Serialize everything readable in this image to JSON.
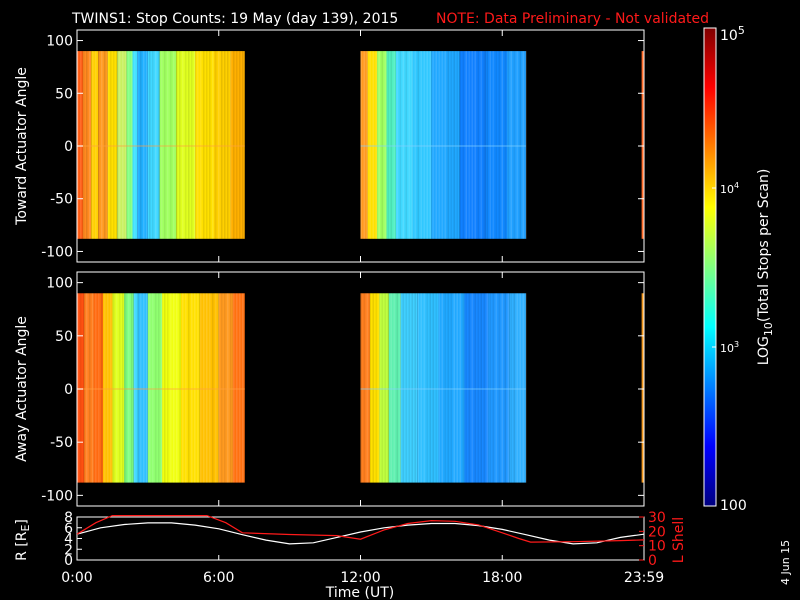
{
  "title": {
    "main": "TWINS1: Stop Counts: 19 May (day 139), 2015",
    "note": "NOTE: Data Preliminary - Not validated"
  },
  "stamp": "4 Jun 15",
  "colorbar": {
    "label": "LOG10(Total Stops per Scan)",
    "label_prefix": "LOG",
    "label_sub": "10",
    "label_suffix": "(Total Stops per Scan)",
    "range": [
      100,
      100000
    ],
    "scale": "log",
    "tick_labels": {
      "t1e5_base": "10",
      "t1e5_exp": "5",
      "t1e4_base": "10",
      "t1e4_exp": "4",
      "t1e3_base": "10",
      "t1e3_exp": "3",
      "t100": "100"
    },
    "colors": [
      "#00007f",
      "#0000ff",
      "#0080ff",
      "#00ffff",
      "#80ff80",
      "#ffff00",
      "#ff8000",
      "#ff0000",
      "#7f0000"
    ]
  },
  "chart_data": [
    {
      "type": "heatmap",
      "panel": "toward",
      "ylabel": "Toward Actuator Angle",
      "ylim": [
        -110,
        110
      ],
      "yticks": [
        100,
        50,
        0,
        -50,
        -100
      ],
      "ytick_labels": [
        "100",
        "50",
        "0",
        "-50",
        "-100"
      ],
      "data_angle_range": [
        -88,
        90
      ],
      "segments": [
        {
          "start_h": 0.0,
          "end_h": 7.1,
          "blocks": [
            [
              0.0,
              0.25,
              "#ff5a10"
            ],
            [
              0.25,
              0.6,
              "#ff8a20"
            ],
            [
              0.6,
              0.9,
              "#ffd000"
            ],
            [
              0.9,
              1.3,
              "#ff9a20"
            ],
            [
              1.3,
              1.7,
              "#ffe000"
            ],
            [
              1.7,
              2.1,
              "#c8f060"
            ],
            [
              2.1,
              2.35,
              "#80ff80"
            ],
            [
              2.35,
              2.55,
              "#40e0ff"
            ],
            [
              2.55,
              3.0,
              "#20b0ff"
            ],
            [
              3.0,
              3.5,
              "#40d8ff"
            ],
            [
              3.5,
              4.2,
              "#a0ff60"
            ],
            [
              4.2,
              5.0,
              "#e0ff20"
            ],
            [
              5.0,
              5.8,
              "#ffe000"
            ],
            [
              5.8,
              6.5,
              "#ffd000"
            ],
            [
              6.5,
              7.1,
              "#ffb000"
            ]
          ]
        },
        {
          "start_h": 12.0,
          "end_h": 19.0,
          "blocks": [
            [
              12.0,
              12.3,
              "#ff9a20"
            ],
            [
              12.3,
              12.7,
              "#ffe000"
            ],
            [
              12.7,
              13.1,
              "#a0ff60"
            ],
            [
              13.1,
              13.5,
              "#50f0c0"
            ],
            [
              13.5,
              14.2,
              "#40d8ff"
            ],
            [
              14.2,
              15.0,
              "#30c8ff"
            ],
            [
              15.0,
              16.2,
              "#20a8ff"
            ],
            [
              16.2,
              17.3,
              "#1080ff"
            ],
            [
              17.3,
              18.2,
              "#1088ff"
            ],
            [
              18.2,
              19.0,
              "#20a0ff"
            ]
          ]
        },
        {
          "start_h": 23.9,
          "end_h": 24.0,
          "blocks": [
            [
              23.9,
              24.0,
              "#ff5a10"
            ]
          ]
        }
      ]
    },
    {
      "type": "heatmap",
      "panel": "away",
      "ylabel": "Away Actuator Angle",
      "ylim": [
        -110,
        110
      ],
      "yticks": [
        100,
        50,
        0,
        -50,
        -100
      ],
      "ytick_labels": [
        "100",
        "50",
        "0",
        "-50",
        "-100"
      ],
      "data_angle_range": [
        -88,
        90
      ],
      "segments": [
        {
          "start_h": 0.0,
          "end_h": 7.1,
          "blocks": [
            [
              0.0,
              0.3,
              "#ff5010"
            ],
            [
              0.3,
              0.7,
              "#ff8020"
            ],
            [
              0.7,
              1.1,
              "#ff6a10"
            ],
            [
              1.1,
              1.5,
              "#ffc000"
            ],
            [
              1.5,
              2.0,
              "#e0ff20"
            ],
            [
              2.0,
              2.4,
              "#80ff80"
            ],
            [
              2.4,
              2.6,
              "#40d8ff"
            ],
            [
              2.6,
              3.0,
              "#30c0ff"
            ],
            [
              3.0,
              3.6,
              "#90ff70"
            ],
            [
              3.6,
              4.4,
              "#f0ff10"
            ],
            [
              4.4,
              5.2,
              "#ffe000"
            ],
            [
              5.2,
              6.0,
              "#ffc000"
            ],
            [
              6.0,
              6.6,
              "#ff9a20"
            ],
            [
              6.6,
              7.1,
              "#ff7010"
            ]
          ]
        },
        {
          "start_h": 12.0,
          "end_h": 19.0,
          "blocks": [
            [
              12.0,
              12.4,
              "#ff8020"
            ],
            [
              12.4,
              12.8,
              "#ffe000"
            ],
            [
              12.8,
              13.2,
              "#c0ff40"
            ],
            [
              13.2,
              13.7,
              "#60f0b0"
            ],
            [
              13.7,
              14.4,
              "#40d0ff"
            ],
            [
              14.4,
              15.3,
              "#30c0ff"
            ],
            [
              15.3,
              16.4,
              "#20a8ff"
            ],
            [
              16.4,
              17.4,
              "#1888ff"
            ],
            [
              17.4,
              18.3,
              "#2098ff"
            ],
            [
              18.3,
              19.0,
              "#30b0ff"
            ]
          ]
        },
        {
          "start_h": 23.9,
          "end_h": 24.0,
          "blocks": [
            [
              23.9,
              24.0,
              "#ffa020"
            ]
          ]
        }
      ]
    },
    {
      "type": "line",
      "panel": "orbit",
      "xlabel": "Time (UT)",
      "xlim": [
        0,
        24
      ],
      "xticks": [
        0,
        6,
        12,
        18,
        24
      ],
      "xtick_labels": [
        "0:00",
        "6:00",
        "12:00",
        "18:00",
        "23:59"
      ],
      "ylabel": "R [RE]",
      "ylabel_prefix": "R [R",
      "ylabel_sub": "E",
      "ylabel_suffix": "]",
      "ylim": [
        0,
        8
      ],
      "yticks": [
        0,
        2,
        4,
        6,
        8
      ],
      "ytick_labels": [
        "0",
        "2",
        "4",
        "6",
        "8"
      ],
      "y2label": "L Shell",
      "y2lim": [
        0,
        30
      ],
      "y2ticks": [
        0,
        10,
        20,
        30
      ],
      "y2tick_labels": [
        "0",
        "10",
        "20",
        "30"
      ],
      "series": [
        {
          "axis": "left",
          "color": "#ffffff",
          "x": [
            0,
            1,
            2,
            3,
            4,
            5,
            6,
            7,
            8,
            9,
            10,
            11,
            12,
            13,
            14,
            15,
            16,
            17,
            18,
            19,
            20,
            21,
            22,
            23,
            24
          ],
          "y": [
            4.8,
            6.0,
            6.6,
            6.9,
            6.9,
            6.5,
            5.8,
            4.7,
            3.7,
            3.0,
            3.2,
            4.2,
            5.2,
            6.0,
            6.5,
            6.8,
            6.8,
            6.4,
            5.7,
            4.7,
            3.7,
            3.0,
            3.2,
            4.2,
            4.8
          ]
        },
        {
          "axis": "right",
          "color": "#ff1a1a",
          "x": [
            0,
            0.8,
            1.5,
            5.5,
            6.3,
            7.0,
            9,
            11,
            12,
            13,
            14,
            15,
            16,
            17,
            18,
            18.7,
            19.2,
            21,
            23,
            24
          ],
          "y": [
            18,
            26,
            31,
            31,
            26,
            19,
            17.8,
            17.0,
            14.5,
            21,
            25.5,
            27.5,
            27,
            24.5,
            19,
            15,
            12.5,
            12.8,
            13.5,
            14
          ]
        }
      ]
    }
  ]
}
